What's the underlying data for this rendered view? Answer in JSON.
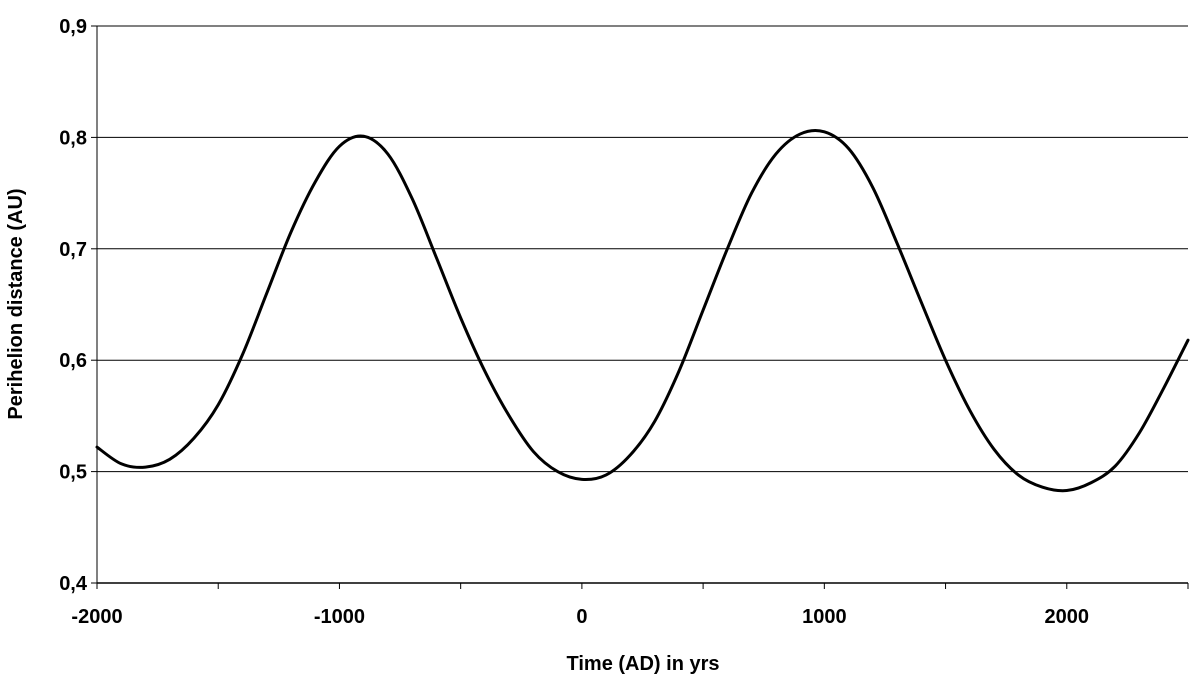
{
  "chart_data": {
    "type": "line",
    "title": "",
    "xlabel": "Time (AD) in yrs",
    "ylabel": "Perihelion distance (AU)",
    "xlim": [
      -2000,
      2500
    ],
    "ylim": [
      0.4,
      0.9
    ],
    "x_ticks": [
      -2000,
      -1000,
      0,
      1000,
      2000
    ],
    "x_tick_labels": [
      "-2000",
      "-1000",
      "0",
      "1000",
      "2000"
    ],
    "x_minor_ticks": [
      -1500,
      -500,
      500,
      1500,
      2500
    ],
    "y_ticks": [
      0.4,
      0.5,
      0.6,
      0.7,
      0.8,
      0.9
    ],
    "y_tick_labels": [
      "0,4",
      "0,5",
      "0,6",
      "0,7",
      "0,8",
      "0,9"
    ],
    "grid": "horizontal major gridlines",
    "line_color": "#000000",
    "series": [
      {
        "x": [
          -2000,
          -1900,
          -1800,
          -1700,
          -1600,
          -1500,
          -1400,
          -1300,
          -1200,
          -1100,
          -1000,
          -900,
          -800,
          -700,
          -600,
          -500,
          -400,
          -300,
          -200,
          -100,
          0,
          100,
          200,
          300,
          400,
          500,
          600,
          700,
          800,
          900,
          1000,
          1100,
          1200,
          1300,
          1400,
          1500,
          1600,
          1700,
          1800,
          1900,
          2000,
          2100,
          2200,
          2300,
          2400,
          2500
        ],
        "y": [
          0.522,
          0.507,
          0.504,
          0.511,
          0.53,
          0.56,
          0.605,
          0.66,
          0.715,
          0.76,
          0.792,
          0.801,
          0.785,
          0.745,
          0.692,
          0.638,
          0.59,
          0.55,
          0.518,
          0.5,
          0.493,
          0.497,
          0.515,
          0.545,
          0.59,
          0.645,
          0.7,
          0.75,
          0.785,
          0.803,
          0.805,
          0.79,
          0.755,
          0.705,
          0.652,
          0.6,
          0.555,
          0.52,
          0.497,
          0.486,
          0.483,
          0.49,
          0.505,
          0.535,
          0.575,
          0.618
        ]
      }
    ]
  }
}
